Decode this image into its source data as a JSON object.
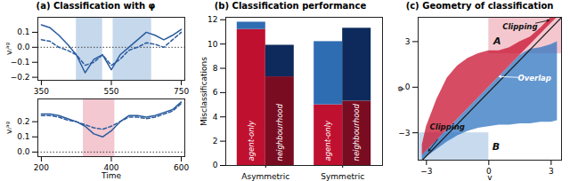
{
  "chart_data": [
    {
      "type": "line",
      "panel": "(a)",
      "title": "Classification with φ",
      "ylabel": "vᵢᵃᵍ",
      "x": [
        350,
        375,
        400,
        425,
        450,
        475,
        500,
        525,
        550,
        575,
        600,
        625,
        650,
        675,
        700,
        725,
        750
      ],
      "series": [
        {
          "color": "#2b5c9e",
          "line_style": "solid",
          "values": [
            0.15,
            0.13,
            0.08,
            0.02,
            -0.05,
            -0.17,
            -0.08,
            -0.05,
            -0.15,
            -0.05,
            0.0,
            0.05,
            0.1,
            0.08,
            0.05,
            0.08,
            0.12
          ]
        },
        {
          "color": "#2b5c9e",
          "line_style": "dashed",
          "values": [
            0.05,
            0.04,
            0.0,
            -0.02,
            -0.05,
            -0.12,
            -0.1,
            -0.05,
            -0.12,
            -0.08,
            -0.02,
            0.0,
            0.03,
            0.02,
            0.0,
            0.05,
            0.1
          ]
        }
      ],
      "xlim": [
        340,
        760
      ],
      "xticks": [
        350,
        550,
        750
      ],
      "ylim": [
        -0.22,
        0.2
      ],
      "yticks": [
        {
          "value": -0.2,
          "label": "−0.2"
        },
        {
          "value": -0.1,
          "label": "−0.1"
        },
        {
          "value": 0,
          "label": "0.0"
        },
        {
          "value": 0.1,
          "label": "0.1"
        }
      ],
      "reference_line": 0,
      "shaded": [
        {
          "x1": 450,
          "x2": 525,
          "color": "#c6d8ec"
        },
        {
          "x1": 555,
          "x2": 665,
          "color": "#c6d8ec"
        }
      ]
    },
    {
      "type": "line",
      "xlabel": "Time",
      "ylabel": "vᵢᵃᵍ",
      "x": [
        200,
        225,
        250,
        275,
        300,
        325,
        350,
        375,
        400,
        425,
        450,
        475,
        500,
        525,
        550,
        575,
        600
      ],
      "series": [
        {
          "color": "#2b5c9e",
          "line_style": "solid",
          "values": [
            0.25,
            0.25,
            0.24,
            0.22,
            0.2,
            0.17,
            0.12,
            0.1,
            0.14,
            0.2,
            0.24,
            0.24,
            0.23,
            0.24,
            0.26,
            0.28,
            0.33
          ]
        },
        {
          "color": "#2b5c9e",
          "line_style": "dashed",
          "values": [
            0.24,
            0.24,
            0.23,
            0.21,
            0.2,
            0.18,
            0.16,
            0.15,
            0.17,
            0.2,
            0.23,
            0.23,
            0.22,
            0.23,
            0.25,
            0.27,
            0.32
          ]
        }
      ],
      "xlim": [
        190,
        610
      ],
      "xticks": [
        200,
        400,
        600
      ],
      "ylim": [
        -0.03,
        0.35
      ],
      "yticks": [
        {
          "value": 0,
          "label": "0.0"
        },
        {
          "value": 0.1,
          "label": "0.1"
        },
        {
          "value": 0.2,
          "label": "0.2"
        }
      ],
      "reference_line": 0,
      "shaded": [
        {
          "x1": 320,
          "x2": 410,
          "color": "#f3c8d0"
        }
      ]
    },
    {
      "type": "bar",
      "stacked": true,
      "panel": "(b)",
      "title": "Classification performance",
      "ylabel": "Misclassifications",
      "groups": [
        "Asymmetric",
        "Symmetric"
      ],
      "bars": [
        {
          "group": "Asymmetric",
          "label": "agent-only",
          "segments": [
            {
              "value": 11.2,
              "color": "#c0102f"
            },
            {
              "value": 0.6,
              "color": "#2f6db3"
            }
          ]
        },
        {
          "group": "Asymmetric",
          "label": "neighbourhood",
          "segments": [
            {
              "value": 7.3,
              "color": "#7a0c22"
            },
            {
              "value": 2.6,
              "color": "#0e2a5c"
            }
          ]
        },
        {
          "group": "Symmetric",
          "label": "agent-only",
          "segments": [
            {
              "value": 5.0,
              "color": "#c0102f"
            },
            {
              "value": 5.2,
              "color": "#2f6db3"
            }
          ]
        },
        {
          "group": "Symmetric",
          "label": "neighbourhood",
          "segments": [
            {
              "value": 5.3,
              "color": "#7a0c22"
            },
            {
              "value": 6.0,
              "color": "#0e2a5c"
            }
          ]
        }
      ],
      "ylim": [
        0,
        12.2
      ],
      "yticks": [
        0,
        2,
        4,
        6,
        8,
        10,
        12
      ]
    },
    {
      "type": "scatter",
      "panel": "(c)",
      "title": "Geometry of classification",
      "xlabel": "v",
      "ylabel": "φ",
      "xlim": [
        -3.4,
        3.5
      ],
      "xticks": [
        {
          "value": -3,
          "label": "−3"
        },
        0,
        3
      ],
      "ylim": [
        -4.8,
        4.6
      ],
      "yticks": [
        {
          "value": -3,
          "label": "−3"
        },
        0,
        3
      ],
      "shaded": [
        {
          "x1": 0,
          "x2": 3.5,
          "y1": 2.2,
          "y2": 4.6,
          "color": "#f4c7cf"
        },
        {
          "x1": -3.4,
          "x2": 0,
          "y1": -4.8,
          "y2": -3.0,
          "color": "#c8daee"
        }
      ],
      "regions": [
        {
          "color": "#2f74c0",
          "x": [
            -3.2,
            -3,
            -2.5,
            -2,
            -1.5,
            -1,
            -0.5,
            0,
            0.5,
            1,
            1.5,
            2,
            2.5,
            3,
            3.3
          ],
          "lower": [
            -4.8,
            -4.6,
            -4.1,
            -3.6,
            -3.2,
            -2.9,
            -2.7,
            -2.6,
            -2.5,
            -2.5,
            -2.4,
            -2.4,
            -2.3,
            -2.3,
            -2.2
          ],
          "upper": [
            -4.5,
            -4.2,
            -3.5,
            -2.8,
            -2.1,
            -1.4,
            -0.7,
            0,
            0.7,
            1.4,
            2.1,
            2.5,
            2.6,
            2.8,
            3.0
          ]
        },
        {
          "color": "#c8102e",
          "x": [
            -3.2,
            -3,
            -2.5,
            -2,
            -1.5,
            -1,
            -0.5,
            0,
            0.5,
            1,
            1.5,
            2,
            2.5,
            3,
            3.3
          ],
          "lower": [
            -4.5,
            -4.2,
            -3.5,
            -2.8,
            -2.1,
            -1.4,
            -0.7,
            0,
            0.7,
            1.4,
            2.1,
            2.8,
            3.5,
            4.2,
            4.6
          ],
          "upper": [
            -3.8,
            -2.6,
            -0.8,
            0.6,
            1.4,
            1.9,
            2.2,
            2.4,
            2.4,
            2.6,
            3.0,
            3.3,
            3.9,
            4.6,
            4.6
          ]
        }
      ],
      "line": {
        "x": [
          -3.2,
          3.5
        ],
        "y": [
          -4.8,
          4.6
        ],
        "color": "#1a1a1a"
      },
      "annotations": [
        {
          "text": "A",
          "x": 0.4,
          "y": 3.0,
          "color": "#111111"
        },
        {
          "text": "B",
          "x": 0.35,
          "y": -3.9,
          "color": "#111111"
        },
        {
          "text": "Clipping",
          "x": 1.5,
          "y": 4.0,
          "arrow_to": [
            2.9,
            4.4
          ],
          "color": "#111111"
        },
        {
          "text": "Overlap",
          "x": 2.2,
          "y": 0.6,
          "arrow_to": [
            0.5,
            0.7
          ],
          "color": "#ffffff"
        },
        {
          "text": "Clipping",
          "x": -2.0,
          "y": -2.6,
          "arrow_to": [
            -2.9,
            -4.2
          ],
          "color": "#111111"
        }
      ]
    }
  ]
}
